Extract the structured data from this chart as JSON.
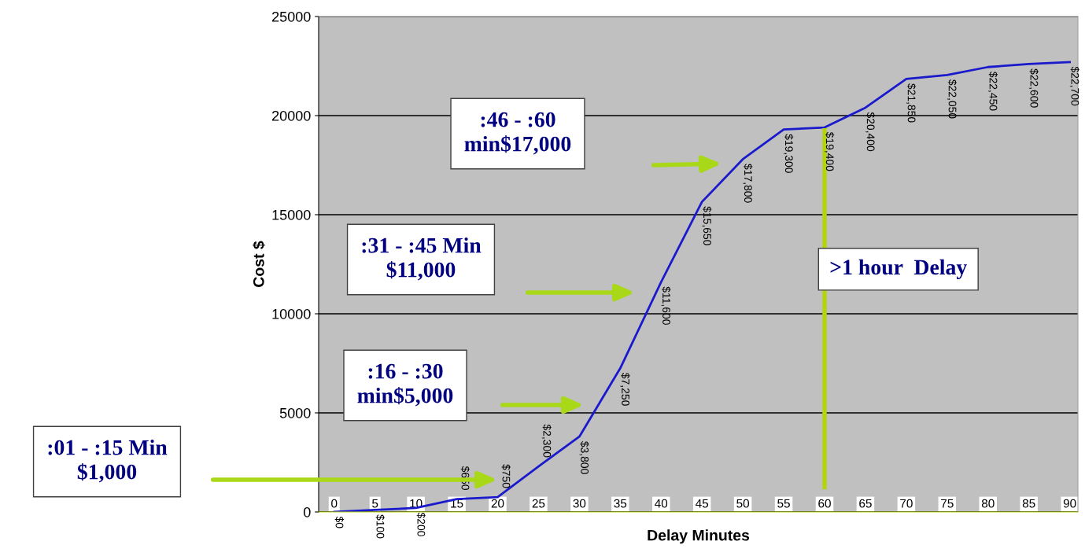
{
  "chart_data": {
    "type": "line",
    "xlabel": "Delay Minutes",
    "ylabel": "Cost $",
    "x": [
      0,
      5,
      10,
      15,
      20,
      25,
      30,
      35,
      40,
      45,
      50,
      55,
      60,
      65,
      70,
      75,
      80,
      85,
      90
    ],
    "xlim": [
      -1.9,
      91
    ],
    "xticks": [
      0,
      5,
      10,
      15,
      20,
      25,
      30,
      35,
      40,
      45,
      50,
      55,
      60,
      65,
      70,
      75,
      80,
      85,
      90
    ],
    "ylim": [
      0,
      25000
    ],
    "yticks": [
      0,
      5000,
      10000,
      15000,
      20000,
      25000
    ],
    "grid": "y",
    "series": [
      {
        "color": "#1a1acc",
        "values": [
          0,
          100,
          200,
          650,
          750,
          2300,
          3800,
          7250,
          11600,
          15650,
          17800,
          19300,
          19400,
          20400,
          21850,
          22050,
          22450,
          22600,
          22700
        ],
        "value_labels": [
          "$0",
          "$100",
          "$200",
          "$650",
          "$750",
          "$2,300",
          "$3,800",
          "$7,250",
          "$11,600",
          "$15,650",
          "$17,800",
          "$19,300",
          "$19,400",
          "$20,400",
          "$21,850",
          "$22,050",
          "$22,450",
          "$22,600",
          "$22,700"
        ]
      }
    ],
    "ref_lines": [
      {
        "axis": "x",
        "value": 60,
        "label": ">1 hour  Delay",
        "color": "#b5d30f"
      }
    ],
    "annotations": [
      ":01 - :15 Min\n$1,000",
      ":16 - :30\nmin$5,000",
      ":31 - :45 Min\n$11,000",
      ":46 - :60\nmin$17,000"
    ]
  }
}
